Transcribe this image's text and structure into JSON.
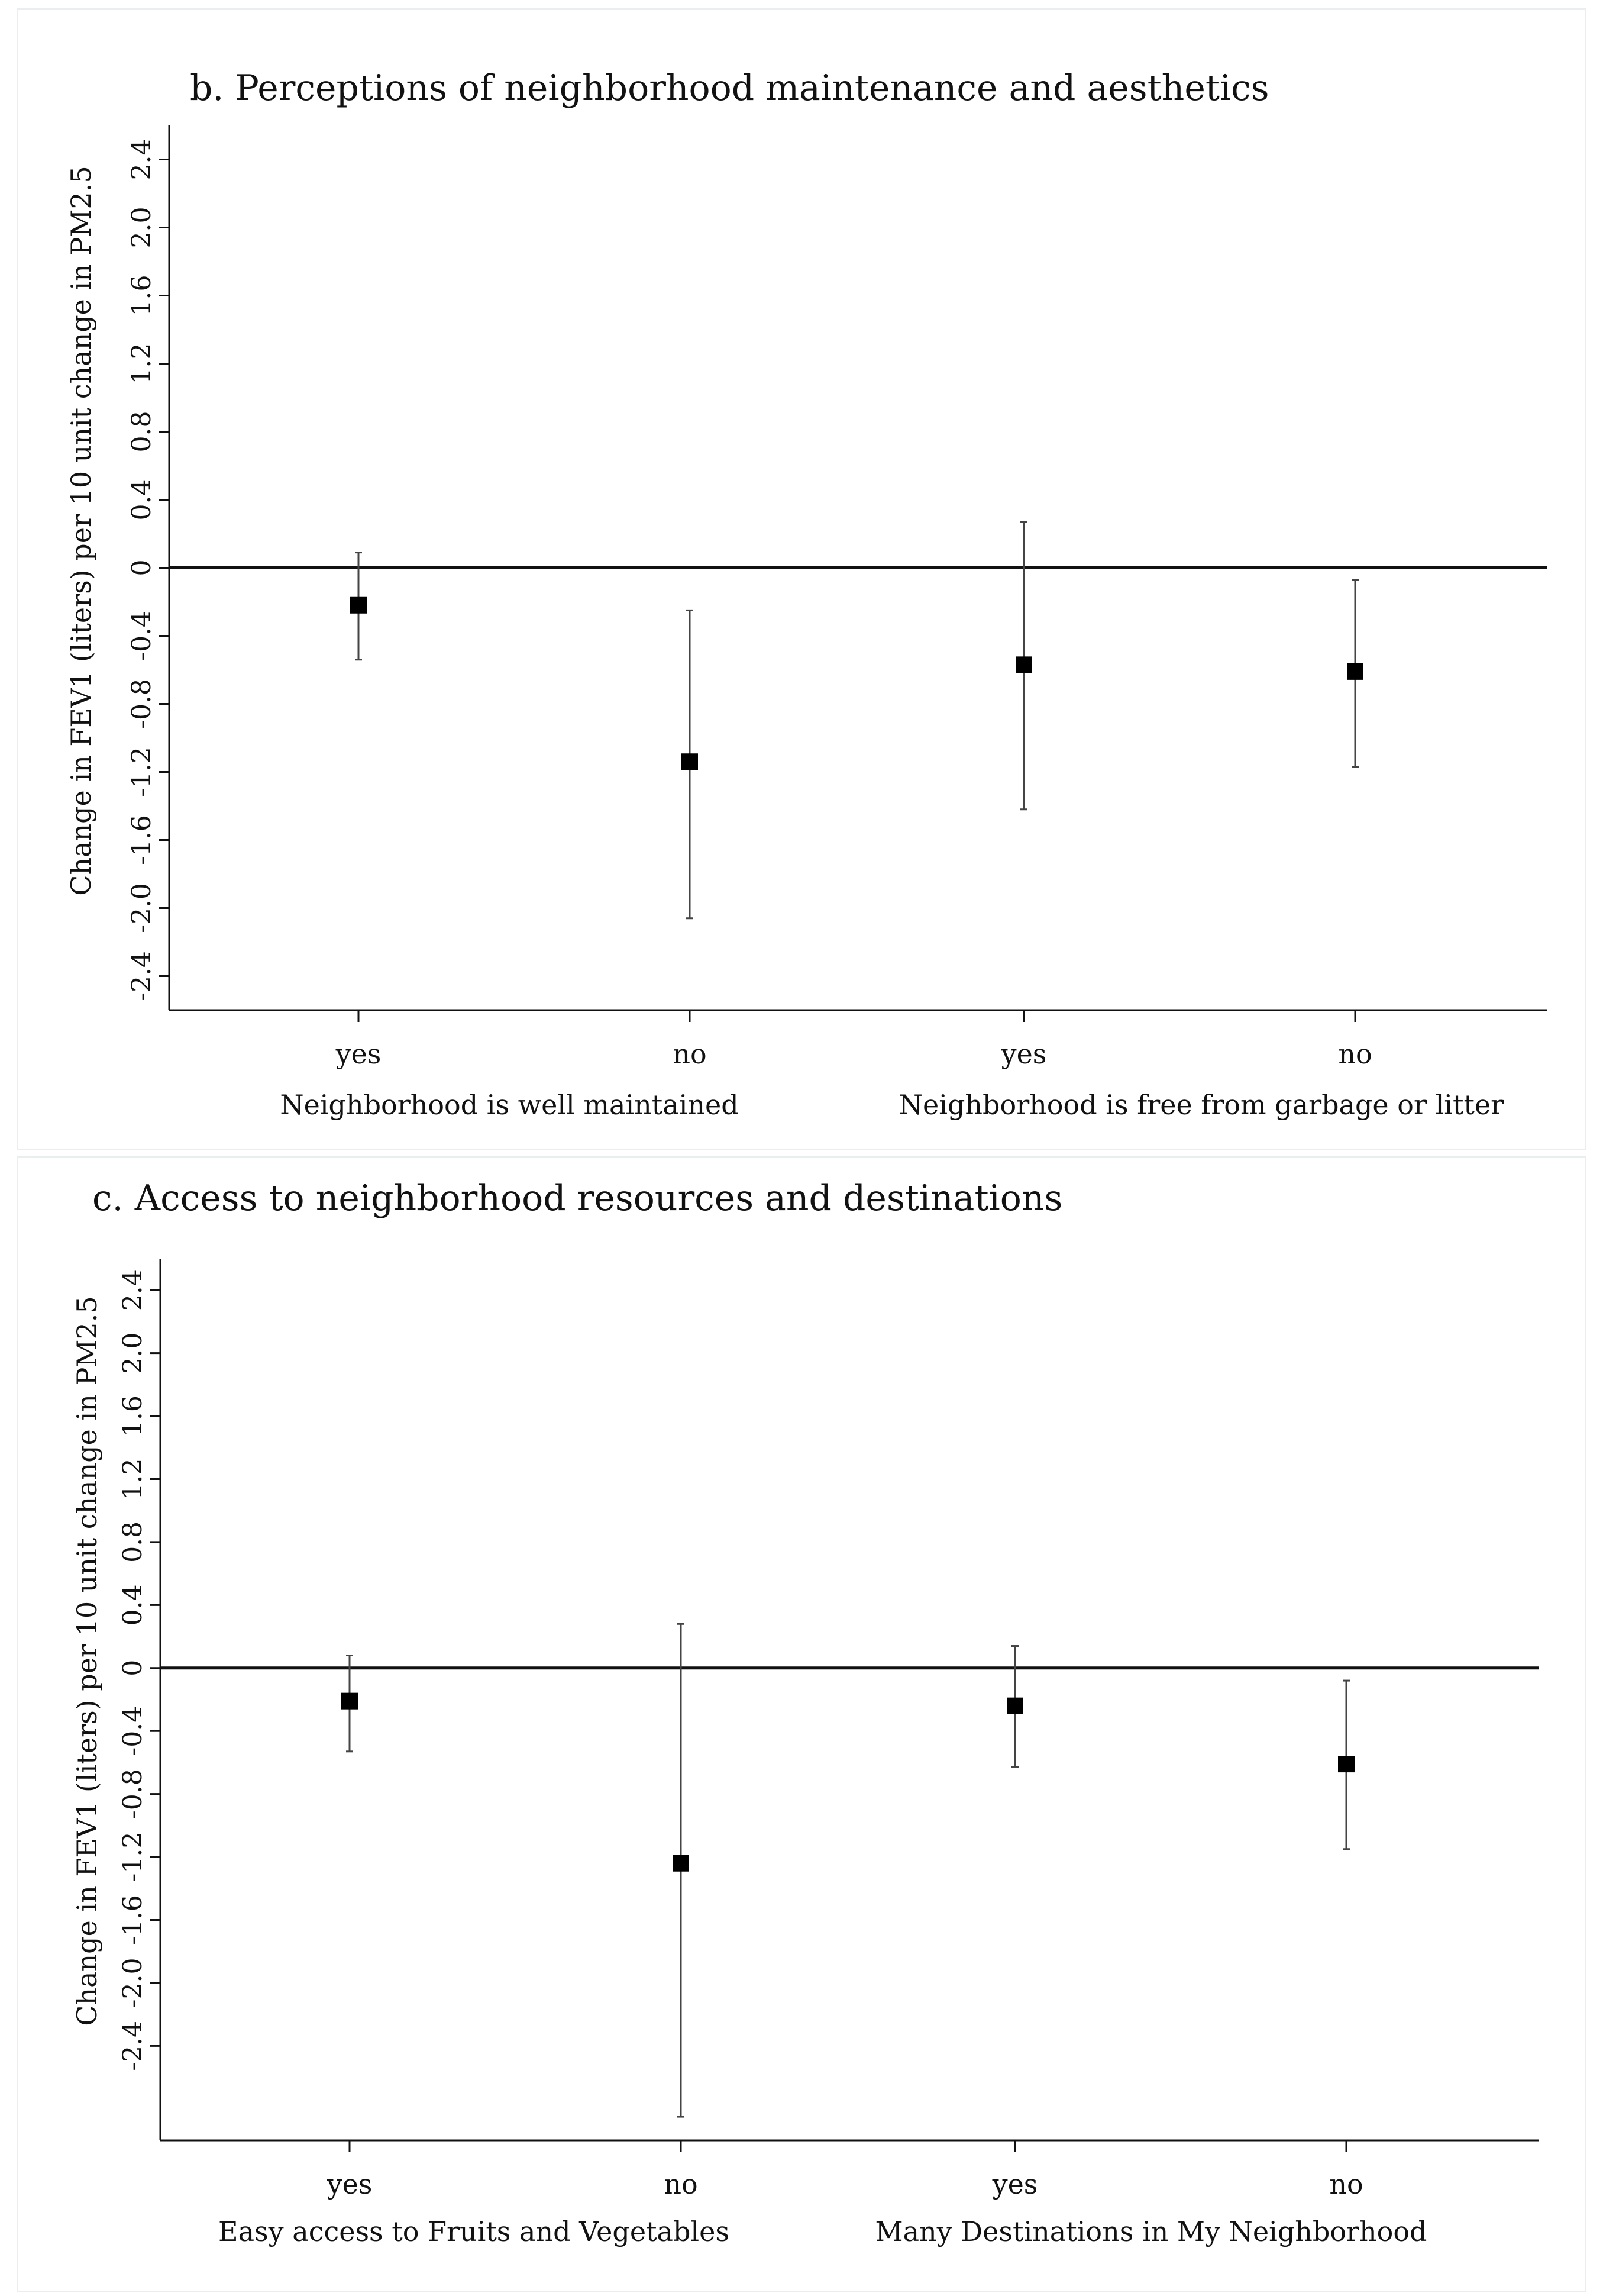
{
  "chart_data": [
    {
      "type": "scatter",
      "subtype": "point-estimate with error bars",
      "title": "b. Perceptions of neighborhood maintenance and aesthetics",
      "ylabel": "Change in FEV1 (liters) per 10 unit change in PM2.5",
      "ylim": [
        -2.6,
        2.6
      ],
      "yticks": [
        2.4,
        2.0,
        1.6,
        1.2,
        0.8,
        0.4,
        0,
        -0.4,
        -0.8,
        -1.2,
        -1.6,
        -2.0,
        -2.4
      ],
      "ytick_labels": [
        "2.4",
        "2.0",
        "1.6",
        "1.2",
        "0.8",
        "0.4",
        "0",
        "-0.4",
        "-0.8",
        "-1.2",
        "-1.6",
        "-2.0",
        "-2.4"
      ],
      "reference_line": 0,
      "categories": [
        "yes",
        "no",
        "yes",
        "no"
      ],
      "groups": [
        {
          "label": "Neighborhood is well maintained",
          "members": [
            0,
            1
          ]
        },
        {
          "label": "Neighborhood is free from garbage or litter",
          "members": [
            2,
            3
          ]
        }
      ],
      "values": [
        -0.22,
        -1.14,
        -0.57,
        -0.61
      ],
      "lower": [
        -0.54,
        -2.06,
        -1.42,
        -1.17
      ],
      "upper": [
        0.09,
        -0.25,
        0.27,
        -0.07
      ]
    },
    {
      "type": "scatter",
      "subtype": "point-estimate with error bars",
      "title": "c. Access to neighborhood resources and destinations",
      "ylabel": "Change in FEV1 (liters) per 10 unit change in PM2.5",
      "ylim": [
        -3.0,
        2.6
      ],
      "yticks": [
        2.4,
        2.0,
        1.6,
        1.2,
        0.8,
        0.4,
        0,
        -0.4,
        -0.8,
        -1.2,
        -1.6,
        -2.0,
        -2.4
      ],
      "ytick_labels": [
        "2.4",
        "2.0",
        "1.6",
        "1.2",
        "0.8",
        "0.4",
        "0",
        "-0.4",
        "-0.8",
        "-1.2",
        "-1.6",
        "-2.0",
        "-2.4"
      ],
      "reference_line": 0,
      "categories": [
        "yes",
        "no",
        "yes",
        "no"
      ],
      "groups": [
        {
          "label": "Easy access to Fruits and Vegetables",
          "members": [
            0,
            1
          ]
        },
        {
          "label": "Many Destinations in My Neighborhood",
          "members": [
            2,
            3
          ]
        }
      ],
      "values": [
        -0.21,
        -1.24,
        -0.24,
        -0.61
      ],
      "lower": [
        -0.53,
        -2.85,
        -0.63,
        -1.15
      ],
      "upper": [
        0.08,
        0.28,
        0.14,
        -0.08
      ]
    }
  ]
}
